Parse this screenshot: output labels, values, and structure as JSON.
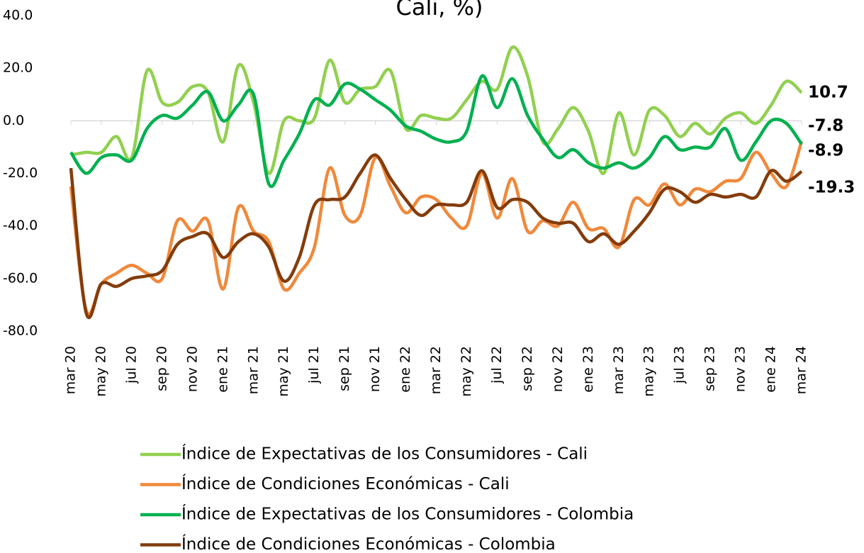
{
  "chart_data": {
    "type": "line",
    "title": "Cali, %)",
    "categories": [
      "mar 20",
      null,
      "may 20",
      null,
      "jul 20",
      null,
      "sep 20",
      null,
      "nov 20",
      null,
      "ene 21",
      null,
      "mar 21",
      null,
      "may 21",
      null,
      "jul 21",
      null,
      "sep 21",
      null,
      "nov 21",
      null,
      "ene 22",
      null,
      "mar 22",
      null,
      "may 22",
      null,
      "jul 22",
      null,
      "sep 22",
      null,
      "nov 22",
      null,
      "ene 23",
      null,
      "mar 23",
      null,
      "may 23",
      null,
      "jul 23",
      null,
      "sep 23",
      null,
      "nov 23",
      null,
      "ene 24",
      null,
      "mar 24"
    ],
    "series": [
      {
        "name": "Índice de Expectativas de los Consumidores - Cali",
        "color": "#92d050",
        "values": [
          -13,
          -12,
          -12,
          -6,
          -14,
          19,
          7,
          7,
          13,
          11,
          -8,
          21,
          7,
          -20,
          0,
          0,
          1,
          23,
          7,
          12,
          13,
          19,
          -3,
          2,
          1,
          1,
          8,
          15,
          12,
          28,
          17,
          -8,
          -3,
          5,
          -4,
          -20,
          3,
          -13,
          4,
          2,
          -6,
          -1,
          -5,
          1,
          3,
          -1,
          6,
          15,
          10.7
        ]
      },
      {
        "name": "Índice de Condiciones Económicas - Cali",
        "color": "#f0893b",
        "values": [
          -25,
          -72,
          -62,
          -58,
          -55,
          -58,
          -60,
          -38,
          -42,
          -38,
          -64,
          -33,
          -42,
          -46,
          -64,
          -58,
          -48,
          -18,
          -36,
          -36,
          -14,
          -25,
          -35,
          -29,
          -30,
          -37,
          -40,
          -20,
          -37,
          -22,
          -42,
          -38,
          -40,
          -31,
          -41,
          -41,
          -48,
          -30,
          -32,
          -24,
          -32,
          -26,
          -27,
          -23,
          -22,
          -12,
          -20,
          -25,
          -7.8
        ]
      },
      {
        "name": "Índice de Expectativas de los Consumidores - Colombia",
        "color": "#00b050",
        "values": [
          -12,
          -20,
          -14,
          -13,
          -15,
          -3,
          2,
          1,
          6,
          11,
          0,
          6,
          10,
          -24,
          -15,
          -5,
          8,
          6,
          14,
          12,
          8,
          4,
          -2,
          -4,
          -7,
          -8,
          -4,
          17,
          5,
          16,
          2,
          -7,
          -14,
          -11,
          -16,
          -18,
          -16,
          -18,
          -14,
          -6,
          -11,
          -10,
          -10,
          -3,
          -15,
          -8,
          0,
          -1,
          -8.9
        ]
      },
      {
        "name": "Índice de Condiciones Económicas - Colombia",
        "color": "#843c0c",
        "values": [
          -18,
          -73,
          -62,
          -63,
          -60,
          -59,
          -57,
          -47,
          -44,
          -43,
          -52,
          -46,
          -43,
          -48,
          -61,
          -52,
          -32,
          -30,
          -29,
          -20,
          -13,
          -22,
          -30,
          -36,
          -32,
          -32,
          -31,
          -19,
          -33,
          -30,
          -31,
          -37,
          -39,
          -39,
          -46,
          -43,
          -47,
          -42,
          -35,
          -26,
          -27,
          -31,
          -28,
          -29,
          -28,
          -29,
          -19,
          -23,
          -19.3
        ]
      }
    ],
    "ylim": [
      -80,
      40
    ],
    "yticks": [
      {
        "value": -80,
        "label": "-80.0"
      },
      {
        "value": -60,
        "label": "-60.0"
      },
      {
        "value": -40,
        "label": "-40.0"
      },
      {
        "value": -20,
        "label": "-20.0"
      },
      {
        "value": 0,
        "label": "0.0"
      },
      {
        "value": 20,
        "label": "20.0"
      },
      {
        "value": 40,
        "label": "40.0"
      }
    ],
    "grid": false
  }
}
